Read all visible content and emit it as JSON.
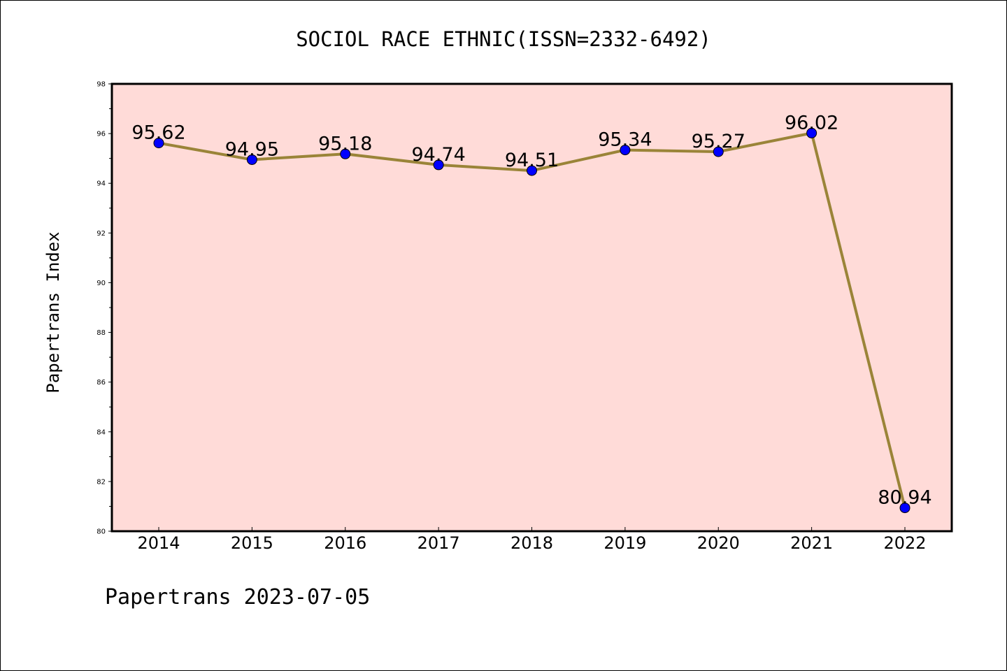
{
  "chart_data": {
    "type": "line",
    "title": "SOCIOL RACE ETHNIC(ISSN=2332-6492)",
    "ylabel": "Papertrans Index",
    "xlabel": "",
    "categories": [
      "2014",
      "2015",
      "2016",
      "2017",
      "2018",
      "2019",
      "2020",
      "2021",
      "2022"
    ],
    "series": [
      {
        "values": [
          95.62,
          94.95,
          95.18,
          94.74,
          94.51,
          95.34,
          95.27,
          96.02,
          80.94
        ]
      }
    ],
    "data_labels": [
      "95.62",
      "94.95",
      "95.18",
      "94.74",
      "94.51",
      "95.34",
      "95.27",
      "96.02",
      "80.94"
    ],
    "ylim": [
      80,
      98
    ],
    "yticks": [
      "80",
      "82",
      "84",
      "86",
      "88",
      "90",
      "92",
      "94",
      "96",
      "98"
    ],
    "grid": false,
    "colors": {
      "plot_background": "#ffdbd8",
      "line": "#9a8438",
      "marker": "#0000ff"
    }
  },
  "footer": "Papertrans 2023-07-05"
}
